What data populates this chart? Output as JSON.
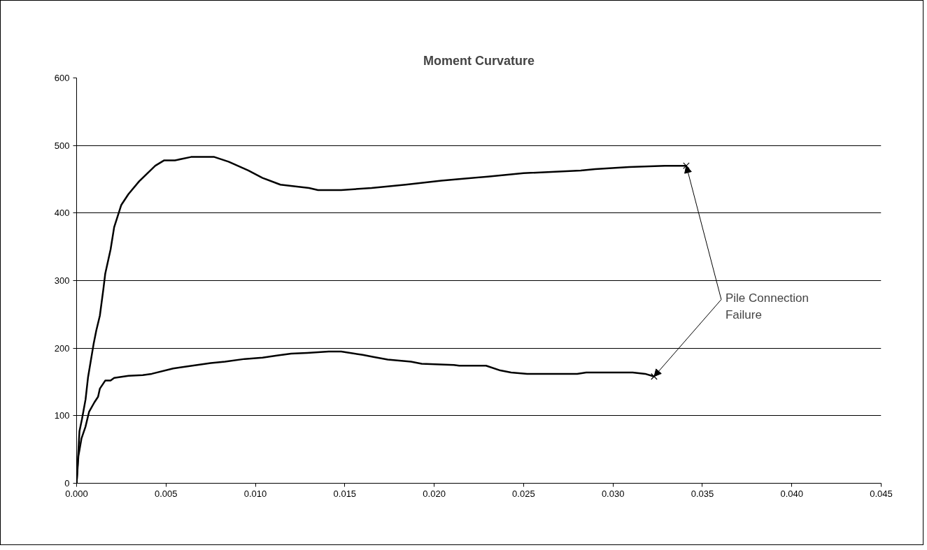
{
  "chart_data": {
    "type": "line",
    "title": "Moment Curvature",
    "series": [
      {
        "color": "#000000",
        "x": [
          0,
          0.00016,
          0.0003,
          0.0005,
          0.00064,
          0.00095,
          0.0011,
          0.0013,
          0.0015,
          0.0016,
          0.0019,
          0.0021,
          0.0025,
          0.0029,
          0.0035,
          0.0044,
          0.0049,
          0.0055,
          0.0064,
          0.0077,
          0.0085,
          0.0096,
          0.0104,
          0.0114,
          0.013,
          0.0135,
          0.0148,
          0.0165,
          0.0184,
          0.0204,
          0.023,
          0.025,
          0.0282,
          0.029,
          0.0309,
          0.0329,
          0.0341
        ],
        "values": [
          0,
          77,
          95,
          124,
          157,
          206,
          226,
          248,
          288,
          310,
          346,
          379,
          412,
          428,
          447,
          470,
          478,
          478,
          483,
          483,
          476,
          463,
          452,
          442,
          437,
          434,
          434,
          437,
          442,
          448,
          454,
          459,
          463,
          465,
          468,
          470,
          470
        ]
      },
      {
        "color": "#000000",
        "x": [
          0,
          0.0001,
          0.00027,
          0.0005,
          0.0007,
          0.001,
          0.0012,
          0.0013,
          0.0016,
          0.0019,
          0.0021,
          0.0029,
          0.0037,
          0.0042,
          0.0054,
          0.0062,
          0.0075,
          0.0083,
          0.0094,
          0.0104,
          0.0112,
          0.012,
          0.0129,
          0.0141,
          0.0148,
          0.016,
          0.0166,
          0.0174,
          0.0187,
          0.0193,
          0.0211,
          0.0214,
          0.0229,
          0.0237,
          0.0243,
          0.0252,
          0.028,
          0.0285,
          0.0311,
          0.0318,
          0.0323
        ],
        "values": [
          0,
          40,
          66,
          84,
          106,
          120,
          128,
          140,
          152,
          152,
          156,
          159,
          160,
          162,
          170,
          173,
          178,
          180,
          184,
          186,
          189,
          192,
          193,
          195,
          195,
          190,
          187,
          183,
          180,
          177,
          175,
          174,
          174,
          167,
          164,
          162,
          162,
          164,
          164,
          162,
          158
        ]
      },
      {
        "type": "scatter",
        "marker": "cross",
        "color": "#000000",
        "x": [
          0.0341,
          0.0323
        ],
        "values": [
          470,
          158
        ]
      }
    ],
    "xlim": [
      0,
      0.045
    ],
    "xticks": [
      {
        "value": 0,
        "label": "0.000"
      },
      {
        "value": 0.005,
        "label": "0.005"
      },
      {
        "value": 0.01,
        "label": "0.010"
      },
      {
        "value": 0.015,
        "label": "0.015"
      },
      {
        "value": 0.02,
        "label": "0.020"
      },
      {
        "value": 0.025,
        "label": "0.025"
      },
      {
        "value": 0.03,
        "label": "0.030"
      },
      {
        "value": 0.035,
        "label": "0.035"
      },
      {
        "value": 0.04,
        "label": "0.040"
      },
      {
        "value": 0.045,
        "label": "0.045"
      }
    ],
    "ylim": [
      0,
      600
    ],
    "yticks": [
      0,
      100,
      200,
      300,
      400,
      500,
      600
    ],
    "grid": "y",
    "line_style": "solid",
    "annotations": [
      {
        "text": "Pile Connection Failure",
        "x": 0.0341,
        "y": 470
      }
    ]
  }
}
